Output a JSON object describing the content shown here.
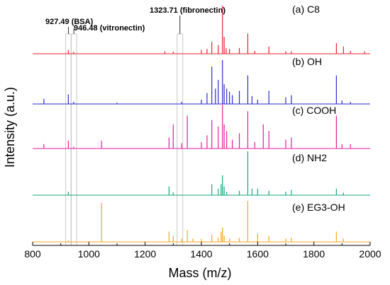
{
  "chart_data": {
    "type": "line",
    "xlabel": "Mass (m/z)",
    "ylabel": "Intensity (a.u.)",
    "xlim": [
      800,
      2000
    ],
    "x_ticks": [
      "800",
      "1000",
      "1200",
      "1400",
      "1600",
      "1800",
      "2000"
    ],
    "grid": false,
    "legend": "none",
    "annotations": [
      {
        "x": 927.49,
        "text": "927.49 (BSA)"
      },
      {
        "x": 946.48,
        "text": "946.48 (vitronectin)"
      },
      {
        "x": 1323.71,
        "text": "1323.71 (fibronectin)"
      }
    ],
    "series": [
      {
        "name": "(a) C8",
        "color": "#e8212b",
        "peaks": [
          [
            927,
            0.08
          ],
          [
            946,
            0.04
          ],
          [
            1270,
            0.05
          ],
          [
            1300,
            0.04
          ],
          [
            1400,
            0.08
          ],
          [
            1420,
            0.1
          ],
          [
            1437,
            0.25
          ],
          [
            1460,
            0.18
          ],
          [
            1475,
            1.0
          ],
          [
            1481,
            0.35
          ],
          [
            1488,
            0.12
          ],
          [
            1500,
            0.1
          ],
          [
            1535,
            0.12
          ],
          [
            1565,
            0.42
          ],
          [
            1590,
            0.06
          ],
          [
            1640,
            0.15
          ],
          [
            1700,
            0.05
          ],
          [
            1720,
            0.05
          ],
          [
            1880,
            0.22
          ],
          [
            1905,
            0.15
          ],
          [
            1930,
            0.06
          ],
          [
            1980,
            0.05
          ]
        ]
      },
      {
        "name": "(b) OH",
        "color": "#2e2ccf",
        "peaks": [
          [
            840,
            0.12
          ],
          [
            927,
            0.22
          ],
          [
            946,
            0.05
          ],
          [
            1100,
            0.03
          ],
          [
            1330,
            0.05
          ],
          [
            1400,
            0.1
          ],
          [
            1420,
            0.25
          ],
          [
            1437,
            0.85
          ],
          [
            1450,
            0.35
          ],
          [
            1460,
            0.55
          ],
          [
            1475,
            1.0
          ],
          [
            1481,
            0.45
          ],
          [
            1490,
            0.35
          ],
          [
            1500,
            0.28
          ],
          [
            1510,
            0.2
          ],
          [
            1535,
            0.3
          ],
          [
            1565,
            0.65
          ],
          [
            1580,
            0.18
          ],
          [
            1600,
            0.1
          ],
          [
            1640,
            0.3
          ],
          [
            1700,
            0.15
          ],
          [
            1720,
            0.2
          ],
          [
            1880,
            0.65
          ],
          [
            1900,
            0.08
          ],
          [
            1930,
            0.05
          ]
        ]
      },
      {
        "name": "(c) COOH",
        "color": "#e21e9b",
        "peaks": [
          [
            840,
            0.1
          ],
          [
            927,
            0.18
          ],
          [
            946,
            0.04
          ],
          [
            1045,
            0.18
          ],
          [
            1285,
            0.25
          ],
          [
            1300,
            0.55
          ],
          [
            1330,
            0.12
          ],
          [
            1350,
            0.75
          ],
          [
            1400,
            0.15
          ],
          [
            1420,
            0.3
          ],
          [
            1437,
            0.65
          ],
          [
            1460,
            0.5
          ],
          [
            1475,
            1.0
          ],
          [
            1481,
            0.55
          ],
          [
            1490,
            0.4
          ],
          [
            1510,
            0.2
          ],
          [
            1535,
            0.35
          ],
          [
            1565,
            0.85
          ],
          [
            1590,
            0.15
          ],
          [
            1620,
            0.55
          ],
          [
            1640,
            0.4
          ],
          [
            1700,
            0.2
          ],
          [
            1720,
            0.25
          ],
          [
            1880,
            0.75
          ],
          [
            1900,
            0.1
          ],
          [
            1930,
            0.1
          ]
        ]
      },
      {
        "name": "(d) NH2",
        "color": "#14a87a",
        "peaks": [
          [
            927,
            0.08
          ],
          [
            1285,
            0.2
          ],
          [
            1300,
            0.06
          ],
          [
            1437,
            0.25
          ],
          [
            1460,
            0.15
          ],
          [
            1470,
            0.25
          ],
          [
            1475,
            0.45
          ],
          [
            1481,
            0.2
          ],
          [
            1490,
            0.08
          ],
          [
            1535,
            0.1
          ],
          [
            1565,
            1.0
          ],
          [
            1580,
            0.15
          ],
          [
            1600,
            0.15
          ],
          [
            1640,
            0.1
          ],
          [
            1700,
            0.08
          ],
          [
            1720,
            0.12
          ],
          [
            1880,
            0.15
          ],
          [
            1905,
            0.06
          ]
        ]
      },
      {
        "name": "(e) EG3-OH",
        "color": "#f3a81b",
        "peaks": [
          [
            927,
            0.04
          ],
          [
            1045,
            0.95
          ],
          [
            1285,
            0.25
          ],
          [
            1300,
            0.15
          ],
          [
            1330,
            0.08
          ],
          [
            1350,
            0.28
          ],
          [
            1370,
            0.08
          ],
          [
            1400,
            0.07
          ],
          [
            1437,
            0.18
          ],
          [
            1460,
            0.1
          ],
          [
            1470,
            0.25
          ],
          [
            1475,
            0.35
          ],
          [
            1481,
            0.15
          ],
          [
            1500,
            0.08
          ],
          [
            1535,
            0.1
          ],
          [
            1565,
            1.0
          ],
          [
            1600,
            0.2
          ],
          [
            1640,
            0.15
          ],
          [
            1700,
            0.08
          ],
          [
            1720,
            0.1
          ],
          [
            1880,
            0.25
          ],
          [
            1905,
            0.08
          ]
        ]
      }
    ]
  }
}
